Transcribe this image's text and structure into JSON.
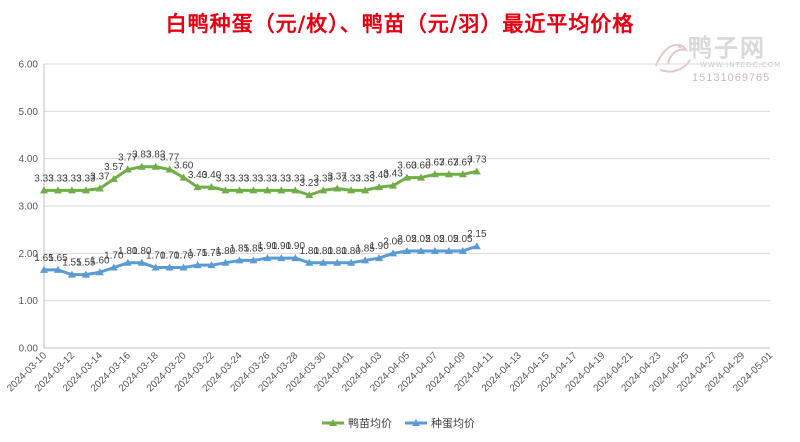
{
  "title": "白鸭种蛋（元/枚）、鸭苗（元/羽）最近平均价格",
  "watermark": {
    "name": "鸭子网",
    "site": "WWW.INTEDC.COM",
    "phone": "15131069765"
  },
  "chart_data": {
    "type": "line",
    "title": "白鸭种蛋（元/枚）、鸭苗（元/羽）最近平均价格",
    "xlabel": "",
    "ylabel": "",
    "ylim": [
      0,
      6
    ],
    "yticks": [
      "0.00",
      "1.00",
      "2.00",
      "3.00",
      "4.00",
      "5.00",
      "6.00"
    ],
    "grid": true,
    "legend_position": "bottom",
    "x_tick_labels": [
      "2024-03-10",
      "2024-03-12",
      "2024-03-14",
      "2024-03-16",
      "2024-03-18",
      "2024-03-20",
      "2024-03-22",
      "2024-03-24",
      "2024-03-26",
      "2024-03-28",
      "2024-03-30",
      "2024-04-01",
      "2024-04-03",
      "2024-04-05",
      "2024-04-07",
      "2024-04-09",
      "2024-04-11",
      "2024-04-13",
      "2024-04-15",
      "2024-04-17",
      "2024-04-19",
      "2024-04-21",
      "2024-04-23",
      "2024-04-25",
      "2024-04-27",
      "2024-04-29",
      "2024-05-01"
    ],
    "x_range": [
      "2024-03-10",
      "2024-05-01"
    ],
    "x": [
      "2024-03-10",
      "2024-03-11",
      "2024-03-12",
      "2024-03-13",
      "2024-03-14",
      "2024-03-15",
      "2024-03-16",
      "2024-03-17",
      "2024-03-18",
      "2024-03-19",
      "2024-03-20",
      "2024-03-21",
      "2024-03-22",
      "2024-03-23",
      "2024-03-24",
      "2024-03-25",
      "2024-03-26",
      "2024-03-27",
      "2024-03-28",
      "2024-03-29",
      "2024-03-30",
      "2024-03-31",
      "2024-04-01",
      "2024-04-02",
      "2024-04-03",
      "2024-04-04",
      "2024-04-05",
      "2024-04-06",
      "2024-04-07",
      "2024-04-08",
      "2024-04-09",
      "2024-04-10"
    ],
    "series": [
      {
        "name": "鸭苗均价",
        "color": "#70ad47",
        "values": [
          3.33,
          3.33,
          3.33,
          3.33,
          3.37,
          3.57,
          3.77,
          3.83,
          3.83,
          3.77,
          3.6,
          3.4,
          3.4,
          3.33,
          3.33,
          3.33,
          3.33,
          3.33,
          3.33,
          3.23,
          3.33,
          3.37,
          3.33,
          3.33,
          3.4,
          3.43,
          3.6,
          3.6,
          3.67,
          3.67,
          3.67,
          3.73
        ]
      },
      {
        "name": "种蛋均价",
        "color": "#5b9bd5",
        "values": [
          1.65,
          1.65,
          1.55,
          1.55,
          1.6,
          1.7,
          1.8,
          1.8,
          1.7,
          1.7,
          1.7,
          1.75,
          1.75,
          1.8,
          1.85,
          1.85,
          1.9,
          1.9,
          1.9,
          1.8,
          1.8,
          1.8,
          1.8,
          1.85,
          1.9,
          2.0,
          2.05,
          2.05,
          2.05,
          2.05,
          2.05,
          2.15
        ]
      }
    ]
  }
}
